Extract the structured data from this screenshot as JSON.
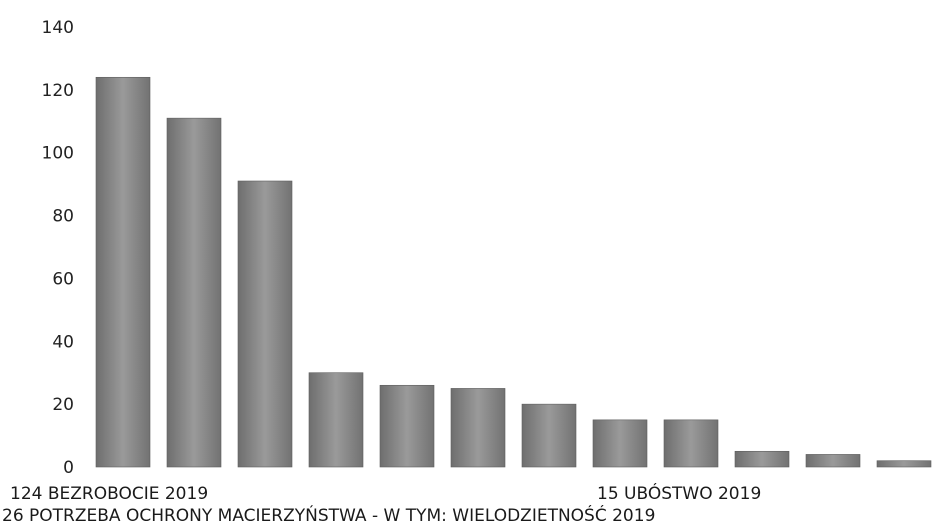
{
  "chart_data": {
    "type": "bar",
    "ylim": [
      0,
      140
    ],
    "yticks": [
      0,
      20,
      40,
      60,
      80,
      100,
      120,
      140
    ],
    "grid": false,
    "values": [
      124,
      111,
      91,
      30,
      26,
      25,
      20,
      15,
      15,
      5,
      4,
      2
    ],
    "bar_color": "#8a8a8a",
    "category_labels": [
      {
        "index": 0,
        "text": "124 BEZROBOCIE 2019"
      },
      {
        "index": 8,
        "text": "15 UBÓSTWO 2019"
      },
      {
        "index": 4,
        "text": "26 POTRZEBA OCHRONY MACIERZYŃSTWA - W TYM: WIELODZIETNOŚĆ 2019"
      }
    ]
  }
}
